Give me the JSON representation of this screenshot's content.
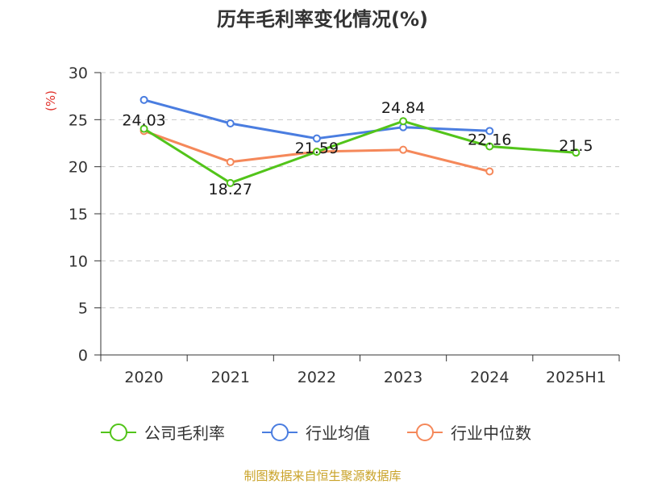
{
  "chart_data": {
    "type": "line",
    "title": "历年毛利率变化情况(%)",
    "ylabel": "(%)",
    "xlabel": "",
    "categories": [
      "2020",
      "2021",
      "2022",
      "2023",
      "2024",
      "2025H1"
    ],
    "ylim": [
      0,
      30
    ],
    "yticks": [
      0,
      5,
      10,
      15,
      20,
      25,
      30
    ],
    "grid": true,
    "legend_position": "bottom",
    "series": [
      {
        "name": "公司毛利率",
        "color": "#52c41a",
        "values": [
          24.03,
          18.27,
          21.59,
          24.84,
          22.16,
          21.5
        ],
        "labels": [
          "24.03",
          "18.27",
          "21.59",
          "24.84",
          "22.16",
          "21.5"
        ]
      },
      {
        "name": "行业均值",
        "color": "#4a7de0",
        "values": [
          27.1,
          24.6,
          23.0,
          24.2,
          23.8,
          null
        ]
      },
      {
        "name": "行业中位数",
        "color": "#f5885a",
        "values": [
          23.8,
          20.5,
          21.6,
          21.8,
          19.5,
          null
        ]
      }
    ]
  },
  "footer": "制图数据来自恒生聚源数据库"
}
